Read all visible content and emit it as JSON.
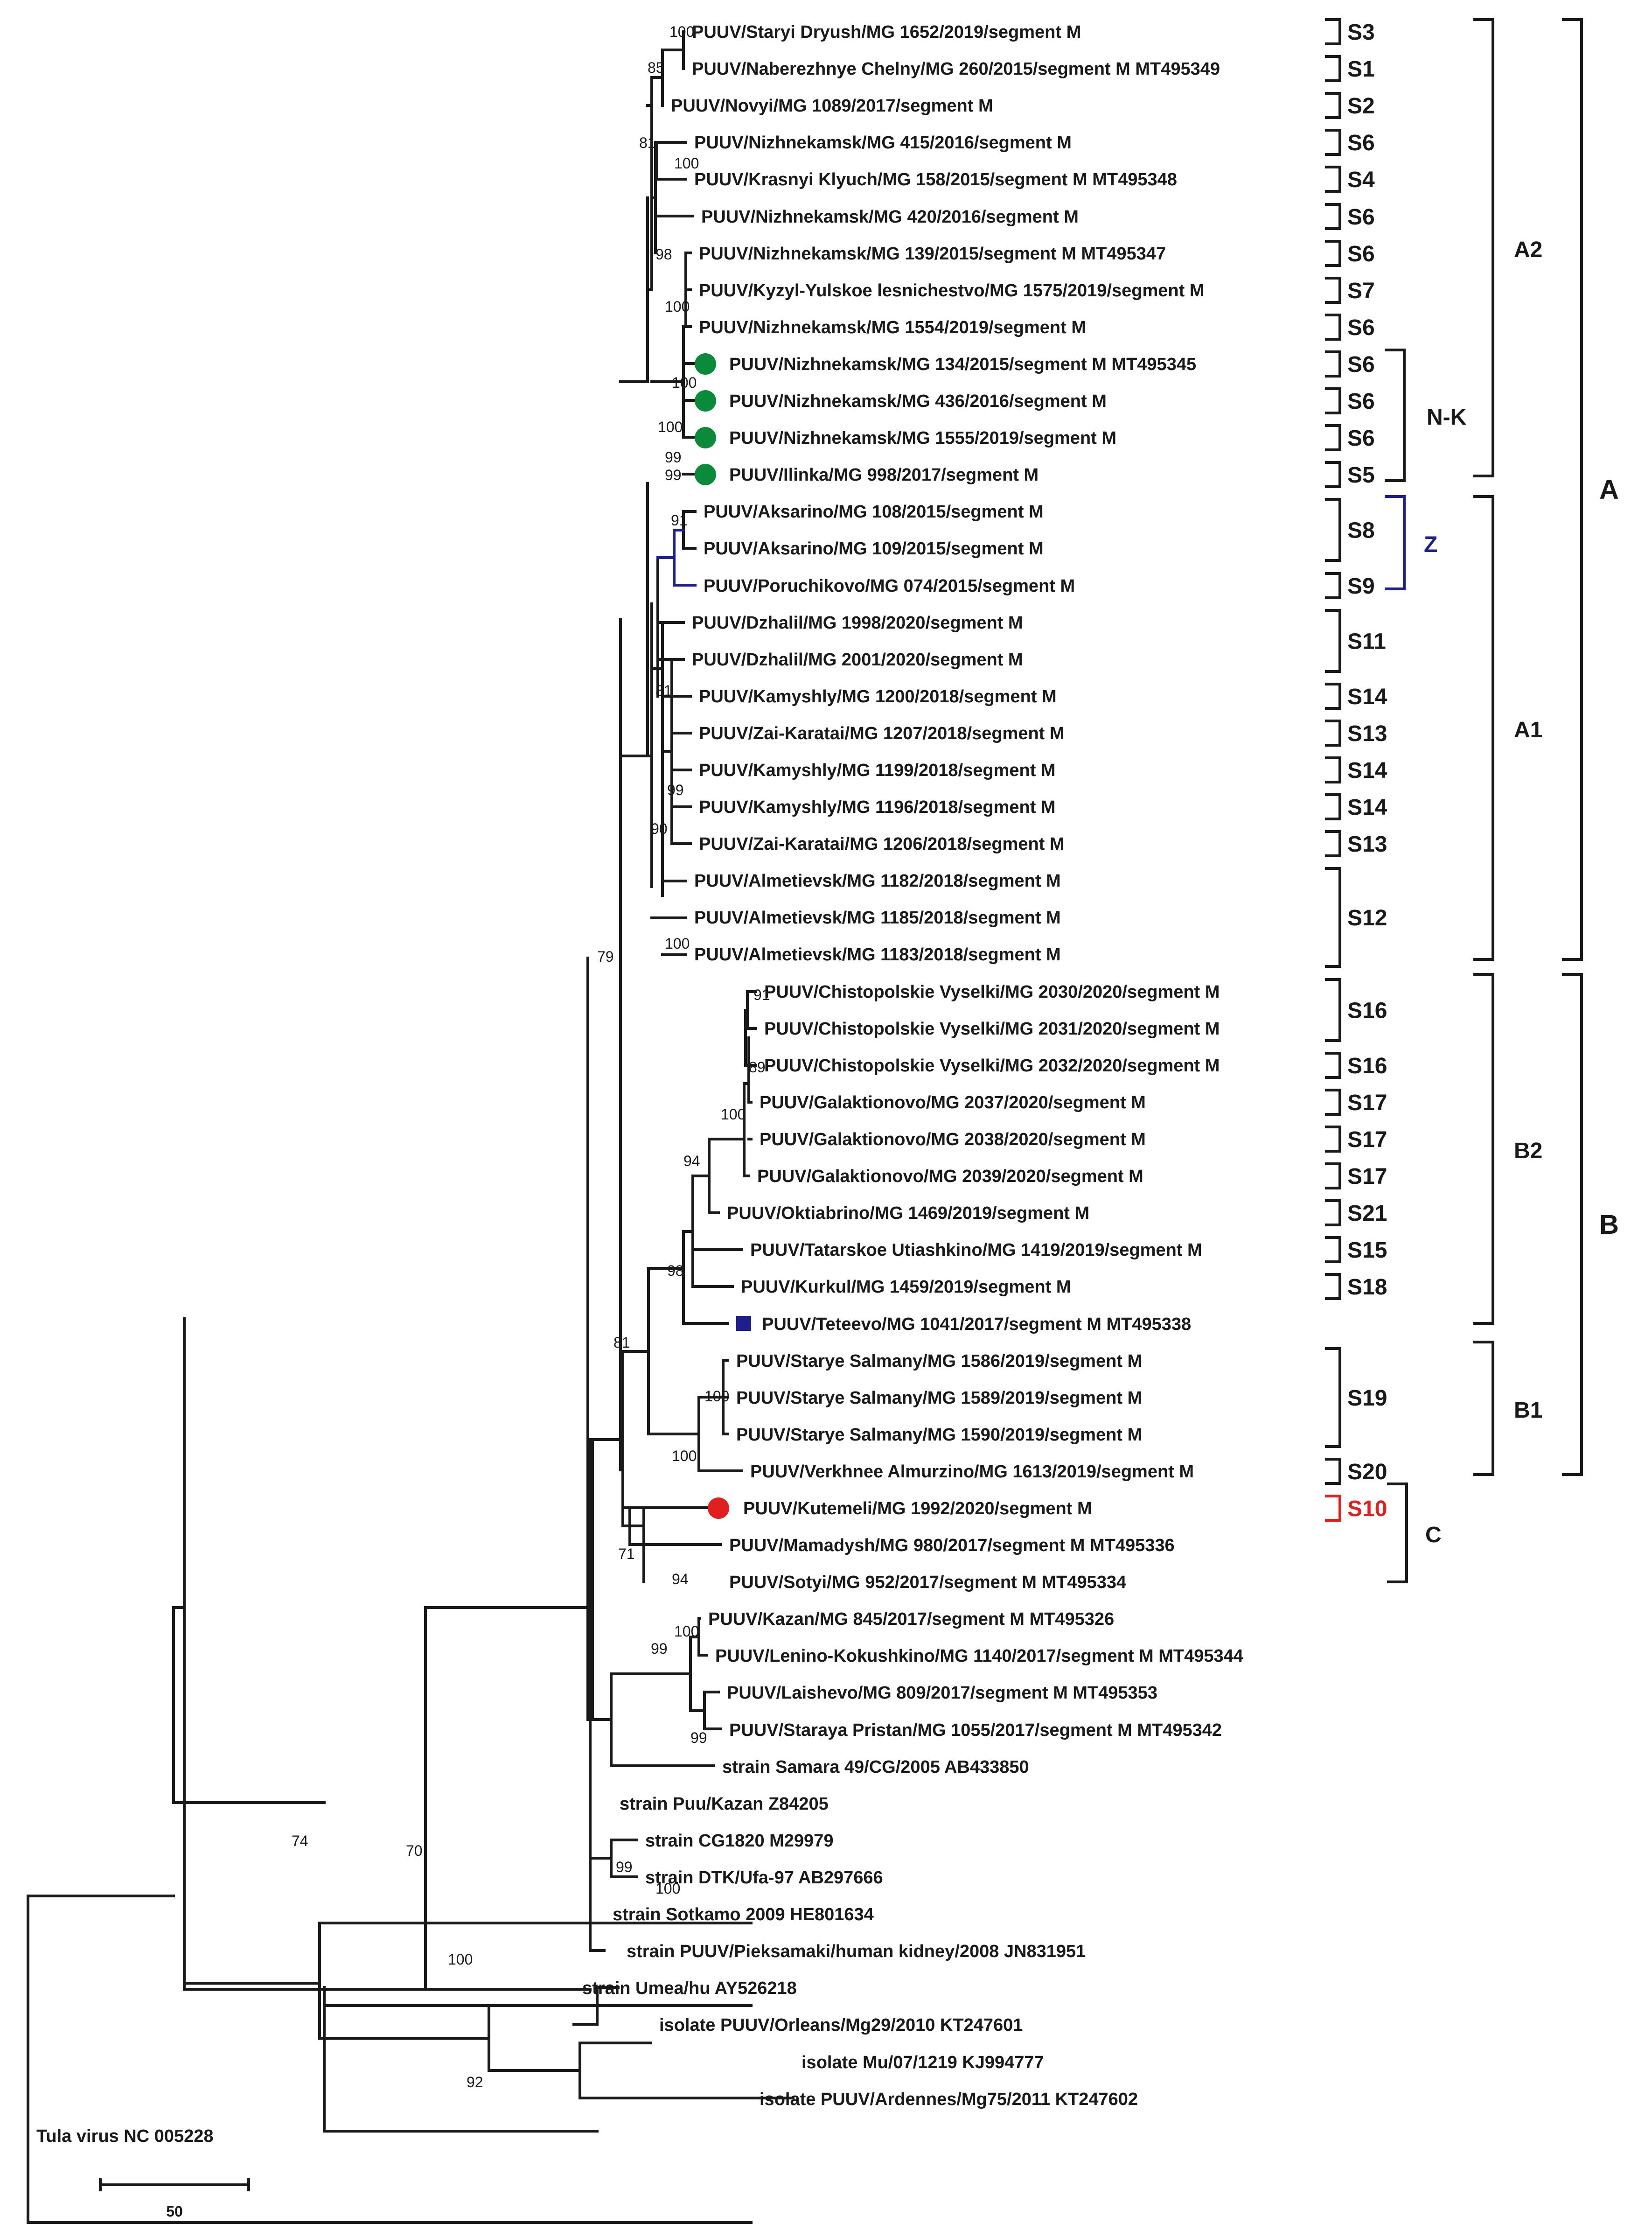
{
  "colors": {
    "line": "#1a1a1a",
    "green": "#0a8a3a",
    "navy": "#1f1f8c",
    "red": "#e0201e"
  },
  "leaves": [
    "PUUV/Staryi Dryush/MG 1652/2019/segment M",
    "PUUV/Naberezhnye Chelny/MG 260/2015/segment M   MT495349",
    "PUUV/Novyi/MG 1089/2017/segment M",
    "PUUV/Nizhnekamsk/MG 415/2016/segment M",
    "PUUV/Krasnyi Klyuch/MG 158/2015/segment M   MT495348",
    "PUUV/Nizhnekamsk/MG 420/2016/segment M",
    "PUUV/Nizhnekamsk/MG 139/2015/segment M   MT495347",
    "PUUV/Kyzyl-Yulskoe lesnichestvo/MG 1575/2019/segment M",
    "PUUV/Nizhnekamsk/MG 1554/2019/segment M",
    "PUUV/Nizhnekamsk/MG 134/2015/segment M   MT495345",
    "PUUV/Nizhnekamsk/MG 436/2016/segment M",
    "PUUV/Nizhnekamsk/MG 1555/2019/segment M",
    "PUUV/Ilinka/MG 998/2017/segment M",
    "PUUV/Aksarino/MG 108/2015/segment M",
    "PUUV/Aksarino/MG 109/2015/segment M",
    "PUUV/Poruchikovo/MG 074/2015/segment M",
    "PUUV/Dzhalil/MG 1998/2020/segment M",
    "PUUV/Dzhalil/MG 2001/2020/segment M",
    "PUUV/Kamyshly/MG 1200/2018/segment M",
    "PUUV/Zai-Karatai/MG 1207/2018/segment M",
    "PUUV/Kamyshly/MG 1199/2018/segment M",
    "PUUV/Kamyshly/MG 1196/2018/segment M",
    "PUUV/Zai-Karatai/MG 1206/2018/segment M",
    "PUUV/Almetievsk/MG 1182/2018/segment M",
    "PUUV/Almetievsk/MG 1185/2018/segment M",
    "PUUV/Almetievsk/MG 1183/2018/segment M",
    "PUUV/Chistopolskie Vyselki/MG 2030/2020/segment M",
    "PUUV/Chistopolskie Vyselki/MG 2031/2020/segment M",
    "PUUV/Chistopolskie Vyselki/MG 2032/2020/segment M",
    "PUUV/Galaktionovo/MG 2037/2020/segment M",
    "PUUV/Galaktionovo/MG 2038/2020/segment M",
    "PUUV/Galaktionovo/MG 2039/2020/segment M",
    "PUUV/Oktiabrino/MG 1469/2019/segment M",
    "PUUV/Tatarskoe Utiashkino/MG 1419/2019/segment M",
    "PUUV/Kurkul/MG 1459/2019/segment M",
    "PUUV/Teteevo/MG 1041/2017/segment M   MT495338",
    "PUUV/Starye Salmany/MG 1586/2019/segment M",
    "PUUV/Starye Salmany/MG 1589/2019/segment M",
    "PUUV/Starye Salmany/MG 1590/2019/segment M",
    "PUUV/Verkhnee Almurzino/MG 1613/2019/segment M",
    "PUUV/Kutemeli/MG 1992/2020/segment M",
    "PUUV/Mamadysh/MG 980/2017/segment M   MT495336",
    "PUUV/Sotyi/MG 952/2017/segment M   MT495334",
    "PUUV/Kazan/MG 845/2017/segment M   MT495326",
    "PUUV/Lenino-Kokushkino/MG 1140/2017/segment M   MT495344",
    "PUUV/Laishevo/MG 809/2017/segment M   MT495353",
    "PUUV/Staraya Pristan/MG 1055/2017/segment M   MT495342",
    "strain Samara 49/CG/2005   AB433850",
    "strain Puu/Kazan   Z84205",
    "strain CG1820   M29979",
    "strain DTK/Ufa-97   AB297666",
    "strain Sotkamo 2009   HE801634",
    "strain PUUV/Pieksamaki/human kidney/2008   JN831951",
    "strain Umea/hu   AY526218",
    "isolate PUUV/Orleans/Mg29/2010   KT247601",
    "isolate Mu/07/1219   KJ994777",
    "isolate PUUV/Ardennes/Mg75/2011   KT247602",
    "Tula virus   NC 005228"
  ],
  "bootstraps": [
    "100",
    "85",
    "81",
    "100",
    "98",
    "100",
    "100",
    "99",
    "100",
    "99",
    "91",
    "81",
    "99",
    "90",
    "100",
    "79",
    "91",
    "89",
    "100",
    "94",
    "98",
    "81",
    "100",
    "100",
    "71",
    "94",
    "99",
    "100",
    "99",
    "99",
    "70",
    "74",
    "100",
    "100",
    "92"
  ],
  "subgroups": [
    "S3",
    "S1",
    "S2",
    "S6",
    "S4",
    "S6",
    "S6",
    "S7",
    "S6",
    "S6",
    "S6",
    "S6",
    "S5",
    "S8",
    "S9",
    "S11",
    "S14",
    "S13",
    "S14",
    "S14",
    "S13",
    "S12",
    "S16",
    "S16",
    "S17",
    "S17",
    "S17",
    "S21",
    "S15",
    "S18",
    "S19",
    "S20",
    "S10"
  ],
  "clade_labels": [
    "A2",
    "N-K",
    "Z",
    "A1",
    "A",
    "B2",
    "B",
    "B1",
    "C"
  ],
  "scale_bar": {
    "value": "50"
  }
}
